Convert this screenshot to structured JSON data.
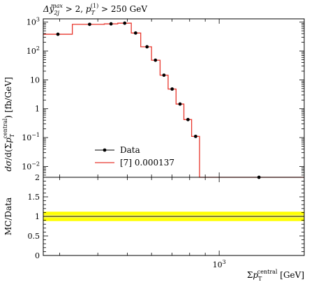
{
  "chart_data": {
    "type": "line",
    "title": "Δy_2j^max > 2, p_T^(1) > 250 GeV",
    "xlabel": "Σp_T^central [GeV]",
    "ylabel": "dσ/d(Σp_T^central) [fb/GeV]",
    "x_scale": "log",
    "y_scale": "log",
    "xlim": [
      265,
      1900
    ],
    "ylim": [
      0.0042,
      1300
    ],
    "x_tick_label": "10^3",
    "y_tick_labels": [
      {
        "value": 1000,
        "label": "10^3"
      },
      {
        "value": 100,
        "label": "10^2"
      },
      {
        "value": 10,
        "label": "10"
      },
      {
        "value": 1,
        "label": "1"
      },
      {
        "value": 0.1,
        "label": "10^−1"
      },
      {
        "value": 0.01,
        "label": "10^−2"
      }
    ],
    "legend_position": "lower-left",
    "series": [
      {
        "name": "Data",
        "marker": "point",
        "color": "#000000",
        "x": [
          296,
          376,
          442,
          490,
          532,
          580,
          618,
          659,
          701,
          744,
          790,
          837,
          885,
          1350
        ],
        "y": [
          380,
          840,
          870,
          920,
          420,
          140,
          48,
          14.5,
          4.8,
          1.45,
          0.42,
          0.11,
          0.0042,
          0.0042
        ]
      },
      {
        "name": "[7] 0.000137",
        "marker": "step",
        "color": "#e8362c",
        "edges": [
          265,
          330,
          420,
          465,
          515,
          553,
          600,
          640,
          680,
          722,
          766,
          812,
          862,
          910,
          1900
        ],
        "values": [
          380,
          840,
          870,
          920,
          420,
          140,
          48,
          14.5,
          4.8,
          1.45,
          0.42,
          0.11,
          0.0042,
          0.0042
        ]
      }
    ],
    "ratio": {
      "ylabel": "MC/Data",
      "ylim": [
        0,
        2
      ],
      "y_tick_labels": [
        {
          "value": 2,
          "label": "2"
        },
        {
          "value": 1.5,
          "label": "1.5"
        },
        {
          "value": 1,
          "label": "1"
        },
        {
          "value": 0.5,
          "label": "0.5"
        },
        {
          "value": 0,
          "label": "0"
        }
      ],
      "band_color": "#ffff00",
      "inner_band_color": "#ffff99",
      "x": [
        265,
        1900
      ],
      "band_lo": [
        0.88,
        0.88
      ],
      "band_hi": [
        1.12,
        1.12
      ],
      "mc": [
        1.0,
        1.0
      ]
    }
  }
}
